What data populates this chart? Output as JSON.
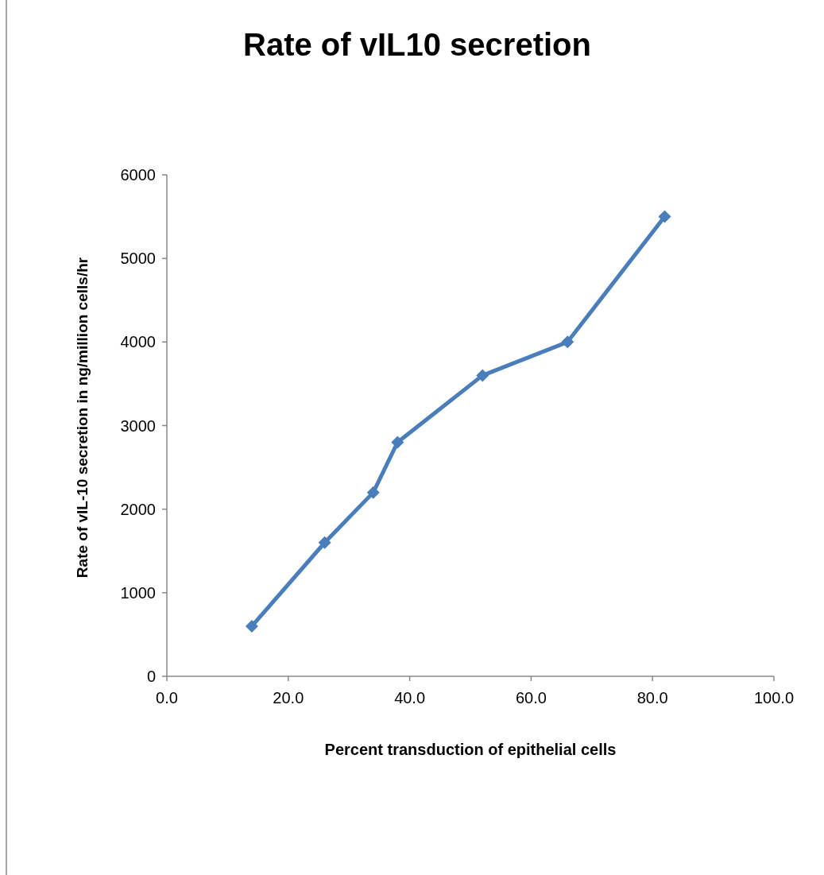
{
  "chart_data": {
    "type": "line",
    "title": "Rate of vIL10 secretion",
    "xlabel": "Percent transduction of epithelial cells",
    "ylabel": "Rate of vIL-10 secretion in ng/million cells/hr",
    "x": [
      14,
      26,
      34,
      38,
      52,
      66,
      82
    ],
    "series": [
      {
        "color": "#4a7ebb",
        "values": [
          600,
          1600,
          2200,
          2800,
          3600,
          4000,
          5500
        ]
      }
    ],
    "xlim": [
      0,
      100
    ],
    "xticks": [
      {
        "value": 0,
        "label": "0.0"
      },
      {
        "value": 20,
        "label": "20.0"
      },
      {
        "value": 40,
        "label": "40.0"
      },
      {
        "value": 60,
        "label": "60.0"
      },
      {
        "value": 80,
        "label": "80.0"
      },
      {
        "value": 100,
        "label": "100.0"
      }
    ],
    "ylim": [
      0,
      6000
    ],
    "yticks": [
      0,
      1000,
      2000,
      3000,
      4000,
      5000,
      6000
    ],
    "grid": false,
    "marker": "diamond",
    "line_style": "solid"
  }
}
